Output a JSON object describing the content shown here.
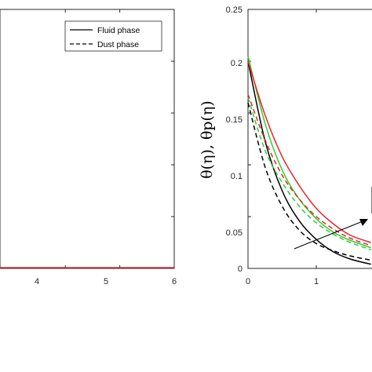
{
  "chart_data": [
    {
      "type": "line",
      "title": "",
      "xlabel": "",
      "ylabel": "",
      "xlim": [
        2.8,
        6
      ],
      "x_ticks": [
        "4",
        "5",
        "6"
      ],
      "x_tick_values": [
        4,
        5,
        6
      ],
      "legend": {
        "placement": "top-right",
        "entries": [
          {
            "label": "Fluid phase",
            "style": "solid"
          },
          {
            "label": "Dust phase",
            "style": "dashed"
          }
        ]
      },
      "series": [
        {
          "color": "#e8262b",
          "style": "solid",
          "x": [
            2.8,
            6
          ],
          "y": [
            0,
            0
          ]
        }
      ]
    },
    {
      "type": "line",
      "title": "",
      "xlabel": "",
      "ylabel": "θ(η), θp(η)",
      "xlim": [
        0,
        1.8
      ],
      "ylim": [
        0,
        0.25
      ],
      "x_ticks": [
        "0",
        "1"
      ],
      "x_tick_values": [
        0,
        1
      ],
      "y_ticks": [
        "0",
        "0.05",
        "0.1",
        "0.15",
        "0.2",
        "0.25"
      ],
      "y_tick_values": [
        0,
        0.05,
        0.1,
        0.15,
        0.2,
        0.25
      ],
      "grid": false,
      "annotation": "arrow indicating increasing trend",
      "series": [
        {
          "color": "#000000",
          "style": "solid",
          "x": [
            0,
            0.25,
            0.5,
            0.75,
            1.0,
            1.25,
            1.5,
            1.8
          ],
          "y": [
            0.2,
            0.123,
            0.075,
            0.046,
            0.028,
            0.016,
            0.009,
            0.004
          ]
        },
        {
          "color": "#000000",
          "style": "dashed",
          "x": [
            0,
            0.25,
            0.5,
            0.75,
            1.0,
            1.25,
            1.5,
            1.8
          ],
          "y": [
            0.16,
            0.098,
            0.06,
            0.037,
            0.024,
            0.017,
            0.012,
            0.008
          ]
        },
        {
          "color": "#33cc33",
          "style": "solid",
          "x": [
            0,
            0.25,
            0.5,
            0.75,
            1.0,
            1.25,
            1.5,
            1.8
          ],
          "y": [
            0.205,
            0.14,
            0.095,
            0.067,
            0.048,
            0.035,
            0.027,
            0.02
          ]
        },
        {
          "color": "#33cc33",
          "style": "dashed",
          "x": [
            0,
            0.25,
            0.5,
            0.75,
            1.0,
            1.25,
            1.5,
            1.8
          ],
          "y": [
            0.165,
            0.114,
            0.083,
            0.06,
            0.044,
            0.033,
            0.025,
            0.018
          ]
        },
        {
          "color": "#e8262b",
          "style": "solid",
          "x": [
            0,
            0.25,
            0.5,
            0.75,
            1.0,
            1.25,
            1.5,
            1.8
          ],
          "y": [
            0.2,
            0.148,
            0.108,
            0.08,
            0.058,
            0.043,
            0.032,
            0.025
          ]
        },
        {
          "color": "#e8262b",
          "style": "dashed",
          "x": [
            0,
            0.25,
            0.5,
            0.75,
            1.0,
            1.25,
            1.5,
            1.8
          ],
          "y": [
            0.168,
            0.124,
            0.09,
            0.067,
            0.05,
            0.038,
            0.029,
            0.022
          ]
        }
      ]
    }
  ]
}
